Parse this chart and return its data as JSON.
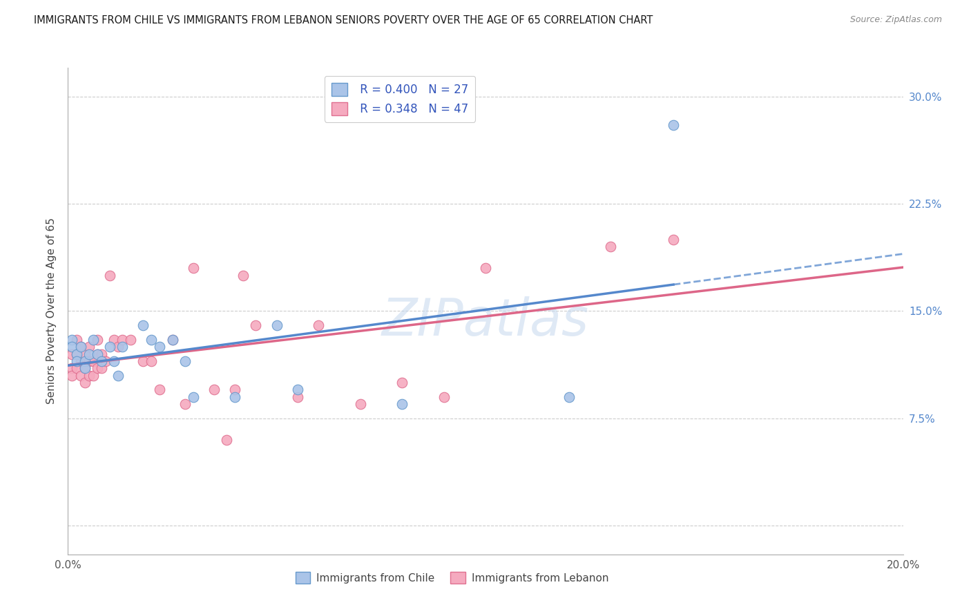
{
  "title": "IMMIGRANTS FROM CHILE VS IMMIGRANTS FROM LEBANON SENIORS POVERTY OVER THE AGE OF 65 CORRELATION CHART",
  "source": "Source: ZipAtlas.com",
  "ylabel": "Seniors Poverty Over the Age of 65",
  "xlim": [
    0.0,
    0.2
  ],
  "ylim": [
    -0.02,
    0.32
  ],
  "plot_ylim": [
    0.0,
    0.32
  ],
  "xtick_positions": [
    0.0,
    0.05,
    0.1,
    0.15,
    0.2
  ],
  "ytick_positions": [
    0.0,
    0.075,
    0.15,
    0.225,
    0.3
  ],
  "xtick_labels": [
    "0.0%",
    "",
    "",
    "",
    "20.0%"
  ],
  "ytick_labels_right": [
    "",
    "7.5%",
    "15.0%",
    "22.5%",
    "30.0%"
  ],
  "chile_color": "#aac4e8",
  "lebanon_color": "#f5aabf",
  "chile_edge_color": "#6699cc",
  "lebanon_edge_color": "#e07090",
  "chile_line_color": "#5588cc",
  "lebanon_line_color": "#dd6688",
  "chile_R": 0.4,
  "chile_N": 27,
  "lebanon_R": 0.348,
  "lebanon_N": 47,
  "watermark": "ZIPatlas",
  "chile_x": [
    0.001,
    0.001,
    0.002,
    0.002,
    0.003,
    0.004,
    0.004,
    0.005,
    0.006,
    0.007,
    0.008,
    0.01,
    0.011,
    0.012,
    0.013,
    0.018,
    0.02,
    0.022,
    0.025,
    0.028,
    0.03,
    0.04,
    0.05,
    0.055,
    0.08,
    0.12,
    0.145
  ],
  "chile_y": [
    0.13,
    0.125,
    0.12,
    0.115,
    0.125,
    0.115,
    0.11,
    0.12,
    0.13,
    0.12,
    0.115,
    0.125,
    0.115,
    0.105,
    0.125,
    0.14,
    0.13,
    0.125,
    0.13,
    0.115,
    0.09,
    0.09,
    0.14,
    0.095,
    0.085,
    0.09,
    0.28
  ],
  "lebanon_x": [
    0.001,
    0.001,
    0.001,
    0.002,
    0.002,
    0.002,
    0.003,
    0.003,
    0.003,
    0.004,
    0.004,
    0.004,
    0.005,
    0.005,
    0.005,
    0.006,
    0.006,
    0.007,
    0.007,
    0.007,
    0.008,
    0.008,
    0.009,
    0.01,
    0.011,
    0.012,
    0.013,
    0.015,
    0.018,
    0.02,
    0.022,
    0.025,
    0.028,
    0.03,
    0.035,
    0.038,
    0.04,
    0.042,
    0.045,
    0.055,
    0.06,
    0.07,
    0.08,
    0.09,
    0.1,
    0.13,
    0.145
  ],
  "lebanon_y": [
    0.12,
    0.11,
    0.105,
    0.13,
    0.12,
    0.11,
    0.125,
    0.115,
    0.105,
    0.12,
    0.11,
    0.1,
    0.125,
    0.115,
    0.105,
    0.115,
    0.105,
    0.13,
    0.12,
    0.11,
    0.12,
    0.11,
    0.115,
    0.175,
    0.13,
    0.125,
    0.13,
    0.13,
    0.115,
    0.115,
    0.095,
    0.13,
    0.085,
    0.18,
    0.095,
    0.06,
    0.095,
    0.175,
    0.14,
    0.09,
    0.14,
    0.085,
    0.1,
    0.09,
    0.18,
    0.195,
    0.2
  ]
}
